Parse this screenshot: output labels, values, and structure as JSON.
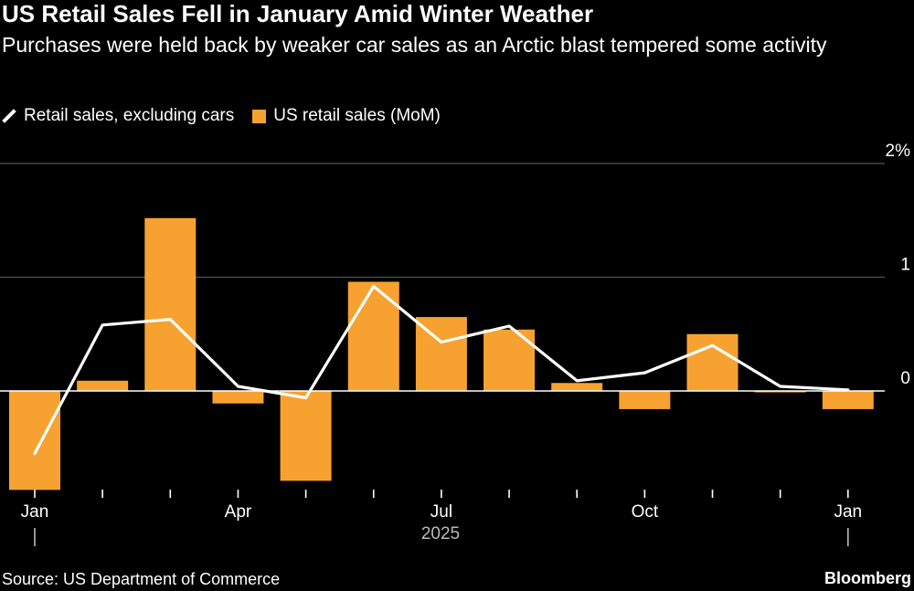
{
  "header": {
    "title": "US Retail Sales Fell in January Amid Winter Weather",
    "subtitle": "Purchases were held back by weaker car sales as an Arctic blast tempered some activity"
  },
  "legend": {
    "line_label": "Retail sales, excluding cars",
    "bar_label": "US retail sales (MoM)"
  },
  "footer": {
    "source": "Source: US Department of Commerce",
    "brand": "Bloomberg"
  },
  "colors": {
    "bar": "#f7a230",
    "line": "#ffffff",
    "background": "#000000",
    "grid": "#555555",
    "zero_line": "#ffffff",
    "tick_text": "#ffffff",
    "year_text": "#bbbbbb"
  },
  "chart_data": {
    "type": "bar",
    "categories": [
      "2025-01",
      "2025-02",
      "2025-03",
      "2025-04",
      "2025-05",
      "2025-06",
      "2025-07",
      "2025-08",
      "2025-09",
      "2025-10",
      "2025-11",
      "2025-12",
      "2026-01"
    ],
    "series": [
      {
        "name": "US retail sales (MoM)",
        "type": "bar",
        "values": [
          -0.87,
          0.09,
          1.52,
          -0.11,
          -0.79,
          0.96,
          0.65,
          0.54,
          0.07,
          -0.16,
          0.5,
          0.0,
          -0.16
        ]
      },
      {
        "name": "Retail sales, excluding cars",
        "type": "line",
        "values": [
          -0.55,
          0.58,
          0.63,
          0.04,
          -0.06,
          0.92,
          0.43,
          0.57,
          0.09,
          0.16,
          0.4,
          0.04,
          0.01
        ]
      }
    ],
    "x_tick_labels": [
      {
        "index": 0,
        "label": "Jan"
      },
      {
        "index": 3,
        "label": "Apr"
      },
      {
        "index": 6,
        "label": "Jul"
      },
      {
        "index": 9,
        "label": "Oct"
      },
      {
        "index": 12,
        "label": "Jan"
      }
    ],
    "year_label": "2025",
    "y_ticks": [
      {
        "value": 2,
        "label": "2%"
      },
      {
        "value": 1,
        "label": "1"
      },
      {
        "value": 0,
        "label": "0"
      }
    ],
    "ylim": [
      -1.0,
      2.0
    ],
    "grid": true,
    "legend_position": "top-left"
  }
}
